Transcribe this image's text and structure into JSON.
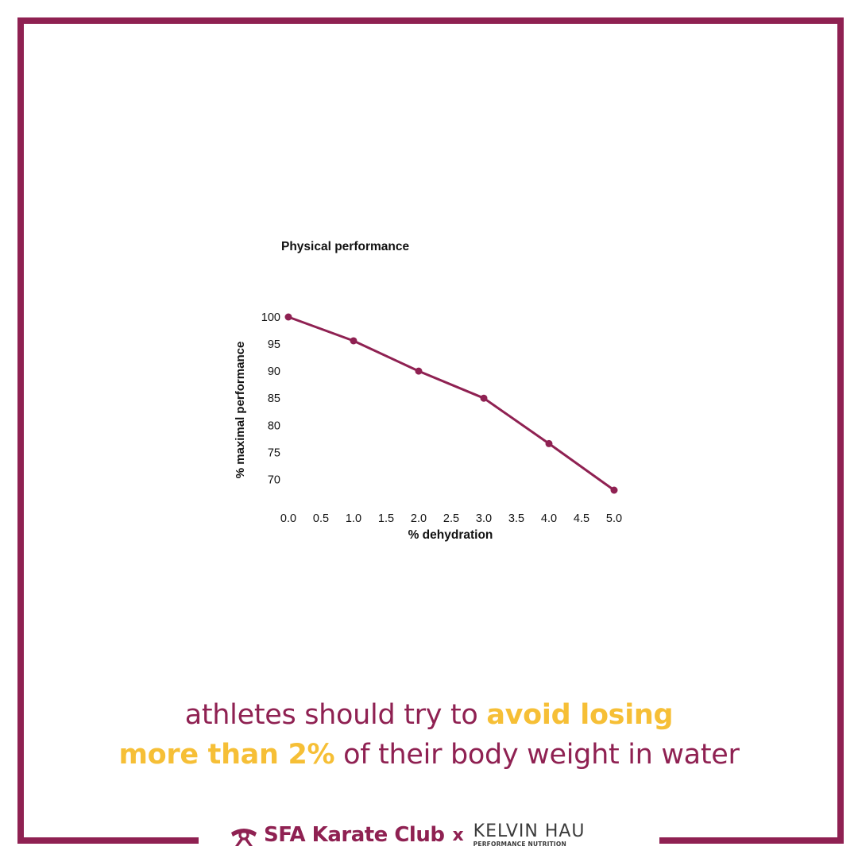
{
  "colors": {
    "frame": "#8f2152",
    "accent": "#f6bf36",
    "line": "#8f2152"
  },
  "chart_data": {
    "type": "line",
    "title": "Physical performance",
    "xlabel": "% dehydration",
    "ylabel": "% maximal performance",
    "x_ticks": [
      "0.0",
      "0.5",
      "1.0",
      "1.5",
      "2.0",
      "2.5",
      "3.0",
      "3.5",
      "4.0",
      "4.5",
      "5.0"
    ],
    "y_ticks": [
      "100",
      "95",
      "90",
      "85",
      "80",
      "75",
      "70"
    ],
    "xlim": [
      0,
      5
    ],
    "ylim": [
      68,
      100
    ],
    "grid": false,
    "series": [
      {
        "x": [
          0,
          1,
          2,
          3,
          4,
          5
        ],
        "y": [
          100,
          95.6,
          90,
          85,
          76.6,
          68
        ]
      }
    ]
  },
  "caption": {
    "line1_a": "athletes should try to ",
    "line1_b": "avoid losing",
    "line2_a": "more than 2%",
    "line2_b": " of their body weight in water"
  },
  "footer": {
    "logo_icon": "karate-belt-icon",
    "brand": "SFA Karate Club",
    "x": "x",
    "partner_name": "KELVIN HAU",
    "partner_sub": "PERFORMANCE NUTRITION"
  }
}
